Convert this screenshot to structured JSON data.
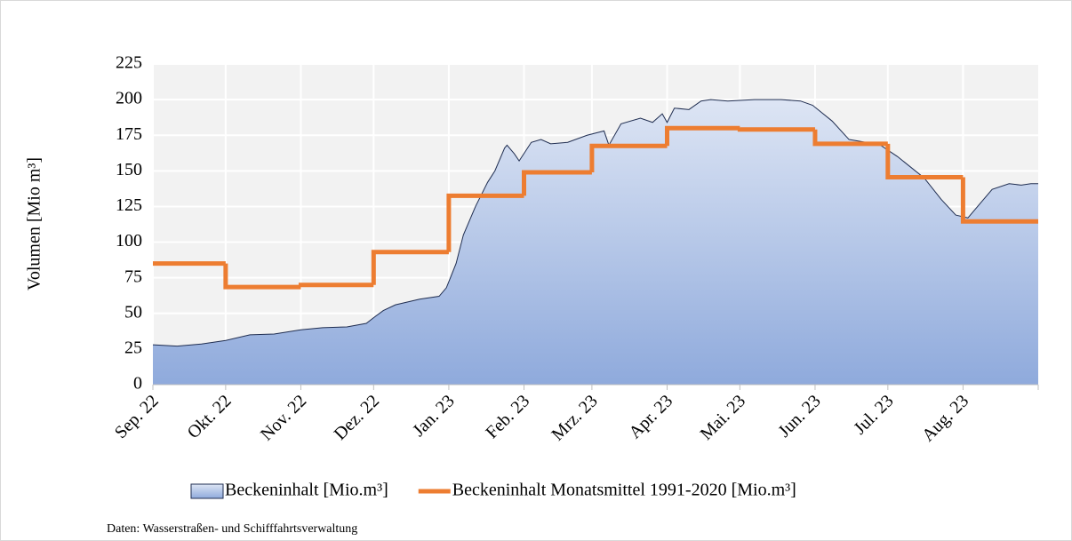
{
  "chart_data": {
    "type": "area-step",
    "y_label": "Volumen [Mio m³]",
    "source": "Daten: Wasserstraßen- und Schifffahrtsverwaltung",
    "xlim": [
      0,
      365
    ],
    "xticks": [
      {
        "value": 0,
        "label": "Sep. 22"
      },
      {
        "value": 30,
        "label": "Okt. 22"
      },
      {
        "value": 61,
        "label": "Nov. 22"
      },
      {
        "value": 91,
        "label": "Dez. 22"
      },
      {
        "value": 122,
        "label": "Jan. 23"
      },
      {
        "value": 153,
        "label": "Feb. 23"
      },
      {
        "value": 181,
        "label": "Mrz. 23"
      },
      {
        "value": 212,
        "label": "Apr. 23"
      },
      {
        "value": 242,
        "label": "Mai. 23"
      },
      {
        "value": 273,
        "label": "Jun. 23"
      },
      {
        "value": 303,
        "label": "Jul. 23"
      },
      {
        "value": 334,
        "label": "Aug. 23"
      }
    ],
    "ylim": [
      0,
      225
    ],
    "yticks": [
      0,
      25,
      50,
      75,
      100,
      125,
      150,
      175,
      200,
      225
    ],
    "grid": true,
    "series": [
      {
        "name": "Beckeninhalt [Mio.m³]",
        "kind": "area",
        "color": "#8faadc",
        "stroke": "#1f2d50",
        "x": [
          0,
          10,
          20,
          30,
          40,
          50,
          61,
          70,
          80,
          88,
          91,
          95,
          100,
          110,
          118,
          121,
          125,
          128,
          133,
          138,
          141,
          145,
          146,
          149,
          151,
          156,
          160,
          164,
          171,
          179,
          186,
          188,
          193,
          201,
          206,
          210,
          212,
          215,
          221,
          226,
          230,
          237,
          248,
          259,
          267,
          272,
          280,
          287,
          294,
          300,
          307,
          318,
          325,
          331,
          336,
          340,
          346,
          353,
          358,
          362,
          365
        ],
        "values": [
          28,
          27,
          28.5,
          31,
          35,
          35.5,
          38.5,
          40,
          40.5,
          43,
          47,
          52,
          56,
          60,
          62,
          68,
          85,
          105,
          125,
          142,
          150,
          166,
          168,
          162,
          157,
          170,
          172,
          169,
          170,
          175,
          178,
          168,
          183,
          187,
          184,
          190,
          184,
          194,
          193,
          199,
          200,
          199,
          200,
          200,
          199,
          196,
          185,
          172,
          170,
          168,
          160,
          145,
          130,
          119,
          117,
          125,
          137,
          141,
          140,
          141,
          141
        ]
      },
      {
        "name": "Beckeninhalt Monatsmittel 1991-2020 [Mio.m³]",
        "kind": "step",
        "color": "#ed7d31",
        "x": [
          0,
          30,
          61,
          91,
          122,
          153,
          181,
          212,
          242,
          273,
          303,
          334
        ],
        "values": [
          85,
          68.5,
          70,
          93,
          132.5,
          149,
          167.5,
          180,
          179,
          169,
          145.5,
          114.5
        ]
      }
    ]
  }
}
